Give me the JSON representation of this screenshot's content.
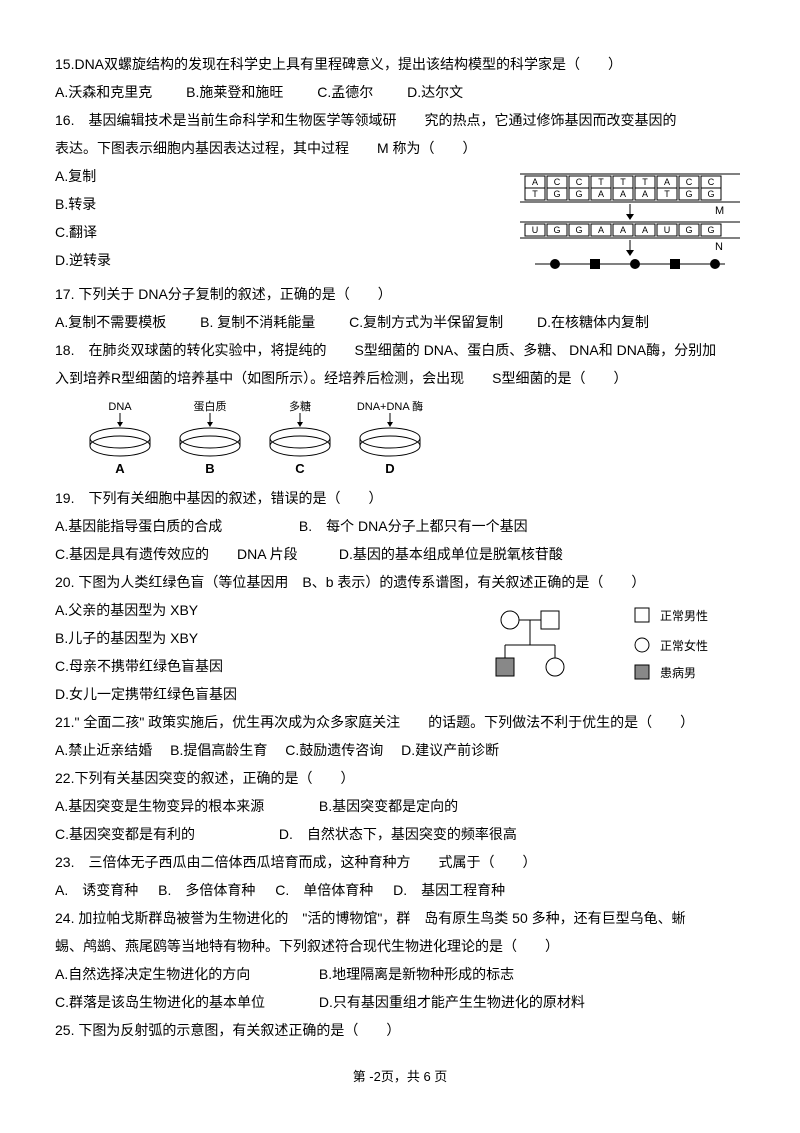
{
  "q15": {
    "text": "15.DNA双螺旋结构的发现在科学史上具有里程碑意义，提出该结构模型的科学家是（　　）",
    "a": "A.沃森和克里克",
    "b": "B.施莱登和施旺",
    "c": "C.孟德尔",
    "d": "D.达尔文"
  },
  "q16": {
    "l1": "16.　基因编辑技术是当前生命科学和生物医学等领域研　　究的热点，它通过修饰基因而改变基因的",
    "l2": "表达。下图表示细胞内基因表达过程，其中过程　　M 称为（　　）",
    "a": "A.复制",
    "b": "B.转录",
    "c": "C.翻译",
    "d": "D.逆转录",
    "fig": {
      "top_row": [
        "A",
        "C",
        "C",
        "T",
        "T",
        "T",
        "A",
        "C",
        "C"
      ],
      "bot_row": [
        "T",
        "G",
        "G",
        "A",
        "A",
        "A",
        "T",
        "G",
        "G"
      ],
      "rna_row": [
        "U",
        "G",
        "G",
        "A",
        "A",
        "A",
        "U",
        "G",
        "G"
      ],
      "m": "M",
      "n": "N",
      "colors": {
        "stroke": "#000",
        "fill": "#fff",
        "text": "#000"
      }
    }
  },
  "q17": {
    "text": "17. 下列关于 DNA分子复制的叙述，正确的是（　　）",
    "a": "A.复制不需要模板",
    "b": "B. 复制不消耗能量",
    "c": "C.复制方式为半保留复制",
    "d": "D.在核糖体内复制"
  },
  "q18": {
    "l1": "18.　在肺炎双球菌的转化实验中，将提纯的　　S型细菌的 DNA、蛋白质、多糖、 DNA和 DNA酶，分别加",
    "l2": "入到培养R型细菌的培养基中（如图所示）。经培养后检测，会出现　　S型细菌的是（　　）",
    "fig": {
      "labels": [
        "DNA",
        "蛋白质",
        "多糖",
        "DNA+DNA 酶"
      ],
      "plates": [
        "A",
        "B",
        "C",
        "D"
      ],
      "colors": {
        "stroke": "#000"
      }
    }
  },
  "q19": {
    "text": "19.　下列有关细胞中基因的叙述，错误的是（　　）",
    "a": "A.基因能指导蛋白质的合成",
    "b": "B.　每个 DNA分子上都只有一个基因",
    "c": "C.基因是具有遗传效应的　　DNA 片段",
    "d": "D.基因的基本组成单位是脱氧核苷酸"
  },
  "q20": {
    "text": "20. 下图为人类红绿色盲（等位基因用　B、b 表示）的遗传系谱图，有关叙述正确的是（　　）",
    "a": "A.父亲的基因型为 XBY",
    "b": "B.儿子的基因型为 XBY",
    "c": "C.母亲不携带红绿色盲基因",
    "d": "D.女儿一定携带红绿色盲基因",
    "legend": {
      "m": "正常男性",
      "f": "正常女性",
      "af": "患病男"
    }
  },
  "q21": {
    "text": "21.\" 全面二孩\" 政策实施后，优生再次成为众多家庭关注　　的话题。下列做法不利于优生的是（　　）",
    "a": "A.禁止近亲结婚",
    "b": "B.提倡高龄生育",
    "c": "C.鼓励遗传咨询",
    "d": "D.建议产前诊断"
  },
  "q22": {
    "text": "22.下列有关基因突变的叙述，正确的是（　　）",
    "a": "A.基因突变是生物变异的根本来源",
    "b": "B.基因突变都是定向的",
    "c": "C.基因突变都是有利的",
    "d": "D.　自然状态下，基因突变的频率很高"
  },
  "q23": {
    "text": "23.　三倍体无子西瓜由二倍体西瓜培育而成，这种育种方　　式属于（　　）",
    "a": "A.　诱变育种",
    "b": "B.　多倍体育种",
    "c": "C.　单倍体育种",
    "d": "D.　基因工程育种"
  },
  "q24": {
    "l1": "24. 加拉帕戈斯群岛被誉为生物进化的　\"活的博物馆\"，群　岛有原生鸟类 50 多种，还有巨型乌龟、蜥",
    "l2": "蜴、鸬鹚、燕尾鸥等当地特有物种。下列叙述符合现代生物进化理论的是（　　）",
    "a": "A.自然选择决定生物进化的方向",
    "b": "B.地理隔离是新物种形成的标志",
    "c": "C.群落是该岛生物进化的基本单位",
    "d": "D.只有基因重组才能产生生物进化的原材料"
  },
  "q25": {
    "text": "25. 下图为反射弧的示意图，有关叙述正确的是（　　）"
  },
  "footer": "第 -2页，共 6 页"
}
